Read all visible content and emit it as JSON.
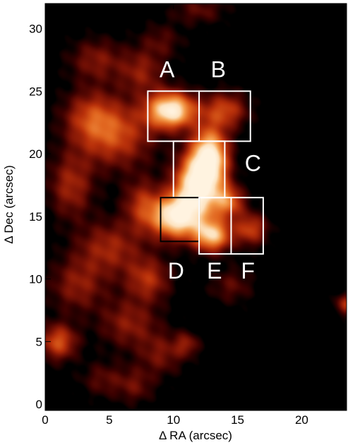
{
  "chart_data": {
    "type": "heatmap",
    "title": "",
    "xlabel": "Δ RA (arcsec)",
    "ylabel": "Δ Dec (arcsec)",
    "xlim": [
      0,
      23.5
    ],
    "ylim": [
      -0.5,
      32
    ],
    "xticks": [
      0,
      5,
      10,
      15,
      20
    ],
    "yticks": [
      0,
      5,
      10,
      15,
      20,
      25,
      30
    ],
    "colormap": [
      "#000000",
      "#3a0000",
      "#7a1205",
      "#b8300a",
      "#e0641e",
      "#f5a050",
      "#fde3c0",
      "#fff3e0"
    ],
    "emission_blobs": [
      {
        "x": 9.8,
        "y": 23.5,
        "sx": 1.3,
        "sy": 1.0,
        "level": 1.0
      },
      {
        "x": 12.8,
        "y": 19.8,
        "sx": 1.0,
        "sy": 1.6,
        "level": 0.95
      },
      {
        "x": 11.8,
        "y": 17.5,
        "sx": 1.2,
        "sy": 1.6,
        "level": 0.95
      },
      {
        "x": 10.2,
        "y": 15.0,
        "sx": 1.4,
        "sy": 1.2,
        "level": 1.0
      },
      {
        "x": 13.0,
        "y": 13.5,
        "sx": 1.0,
        "sy": 0.9,
        "level": 0.8
      },
      {
        "x": 14.2,
        "y": 16.2,
        "sx": 0.9,
        "sy": 0.9,
        "level": 0.55
      },
      {
        "x": 16.0,
        "y": 14.0,
        "sx": 0.9,
        "sy": 0.9,
        "level": 0.45
      },
      {
        "x": 14.0,
        "y": 23.5,
        "sx": 1.2,
        "sy": 1.0,
        "level": 0.45
      },
      {
        "x": 5.5,
        "y": 21.5,
        "sx": 2.0,
        "sy": 1.8,
        "level": 0.45
      },
      {
        "x": 3.5,
        "y": 23.0,
        "sx": 1.5,
        "sy": 1.5,
        "level": 0.35
      },
      {
        "x": 7.5,
        "y": 26.5,
        "sx": 1.2,
        "sy": 1.2,
        "level": 0.3
      },
      {
        "x": 4.0,
        "y": 27.5,
        "sx": 1.5,
        "sy": 1.2,
        "level": 0.28
      },
      {
        "x": 2.0,
        "y": 17.5,
        "sx": 1.2,
        "sy": 1.8,
        "level": 0.35
      },
      {
        "x": 7.5,
        "y": 16.0,
        "sx": 1.0,
        "sy": 1.4,
        "level": 0.35
      },
      {
        "x": 5.0,
        "y": 12.5,
        "sx": 1.8,
        "sy": 1.5,
        "level": 0.35
      },
      {
        "x": 8.0,
        "y": 10.0,
        "sx": 1.2,
        "sy": 1.2,
        "level": 0.38
      },
      {
        "x": 2.5,
        "y": 9.5,
        "sx": 1.5,
        "sy": 1.5,
        "level": 0.3
      },
      {
        "x": 1.0,
        "y": 5.0,
        "sx": 1.0,
        "sy": 1.0,
        "level": 0.5
      },
      {
        "x": 6.5,
        "y": 6.5,
        "sx": 1.6,
        "sy": 1.4,
        "level": 0.3
      },
      {
        "x": 9.0,
        "y": 4.0,
        "sx": 1.2,
        "sy": 1.2,
        "level": 0.25
      },
      {
        "x": 11.0,
        "y": 4.8,
        "sx": 0.7,
        "sy": 0.7,
        "level": 0.28
      },
      {
        "x": 7.0,
        "y": 1.5,
        "sx": 1.0,
        "sy": 1.0,
        "level": 0.22
      },
      {
        "x": 4.5,
        "y": 2.0,
        "sx": 1.2,
        "sy": 1.0,
        "level": 0.2
      },
      {
        "x": 14.5,
        "y": 9.5,
        "sx": 1.2,
        "sy": 1.0,
        "level": 0.2
      },
      {
        "x": 23.5,
        "y": 8.0,
        "sx": 0.6,
        "sy": 0.6,
        "level": 0.4
      },
      {
        "x": 12.0,
        "y": 31.5,
        "sx": 1.5,
        "sy": 0.8,
        "level": 0.2
      },
      {
        "x": 9.0,
        "y": 29.0,
        "sx": 1.2,
        "sy": 1.0,
        "level": 0.18
      }
    ],
    "regions": [
      {
        "label": "A",
        "x0": 8.0,
        "x1": 12.0,
        "y0": 21.0,
        "y1": 25.0,
        "edge": "#ffffff",
        "label_x": 9.5,
        "label_y": 26.6
      },
      {
        "label": "B",
        "x0": 12.0,
        "x1": 16.0,
        "y0": 21.0,
        "y1": 25.0,
        "edge": "#ffffff",
        "label_x": 13.5,
        "label_y": 26.6
      },
      {
        "label": "C",
        "x0": 10.0,
        "x1": 14.0,
        "y0": 16.5,
        "y1": 21.0,
        "edge": "#ffffff",
        "label_x": 16.2,
        "label_y": 19.1
      },
      {
        "label": "D",
        "x0": 9.0,
        "x1": 12.0,
        "y0": 13.0,
        "y1": 16.5,
        "edge": "#000000",
        "label_x": 10.2,
        "label_y": 10.5
      },
      {
        "label": "E",
        "x0": 12.0,
        "x1": 14.5,
        "y0": 12.0,
        "y1": 16.5,
        "edge": "#ffffff",
        "label_x": 13.2,
        "label_y": 10.5
      },
      {
        "label": "F",
        "x0": 14.5,
        "x1": 17.0,
        "y0": 12.0,
        "y1": 16.5,
        "edge": "#ffffff",
        "label_x": 15.8,
        "label_y": 10.5
      }
    ]
  }
}
